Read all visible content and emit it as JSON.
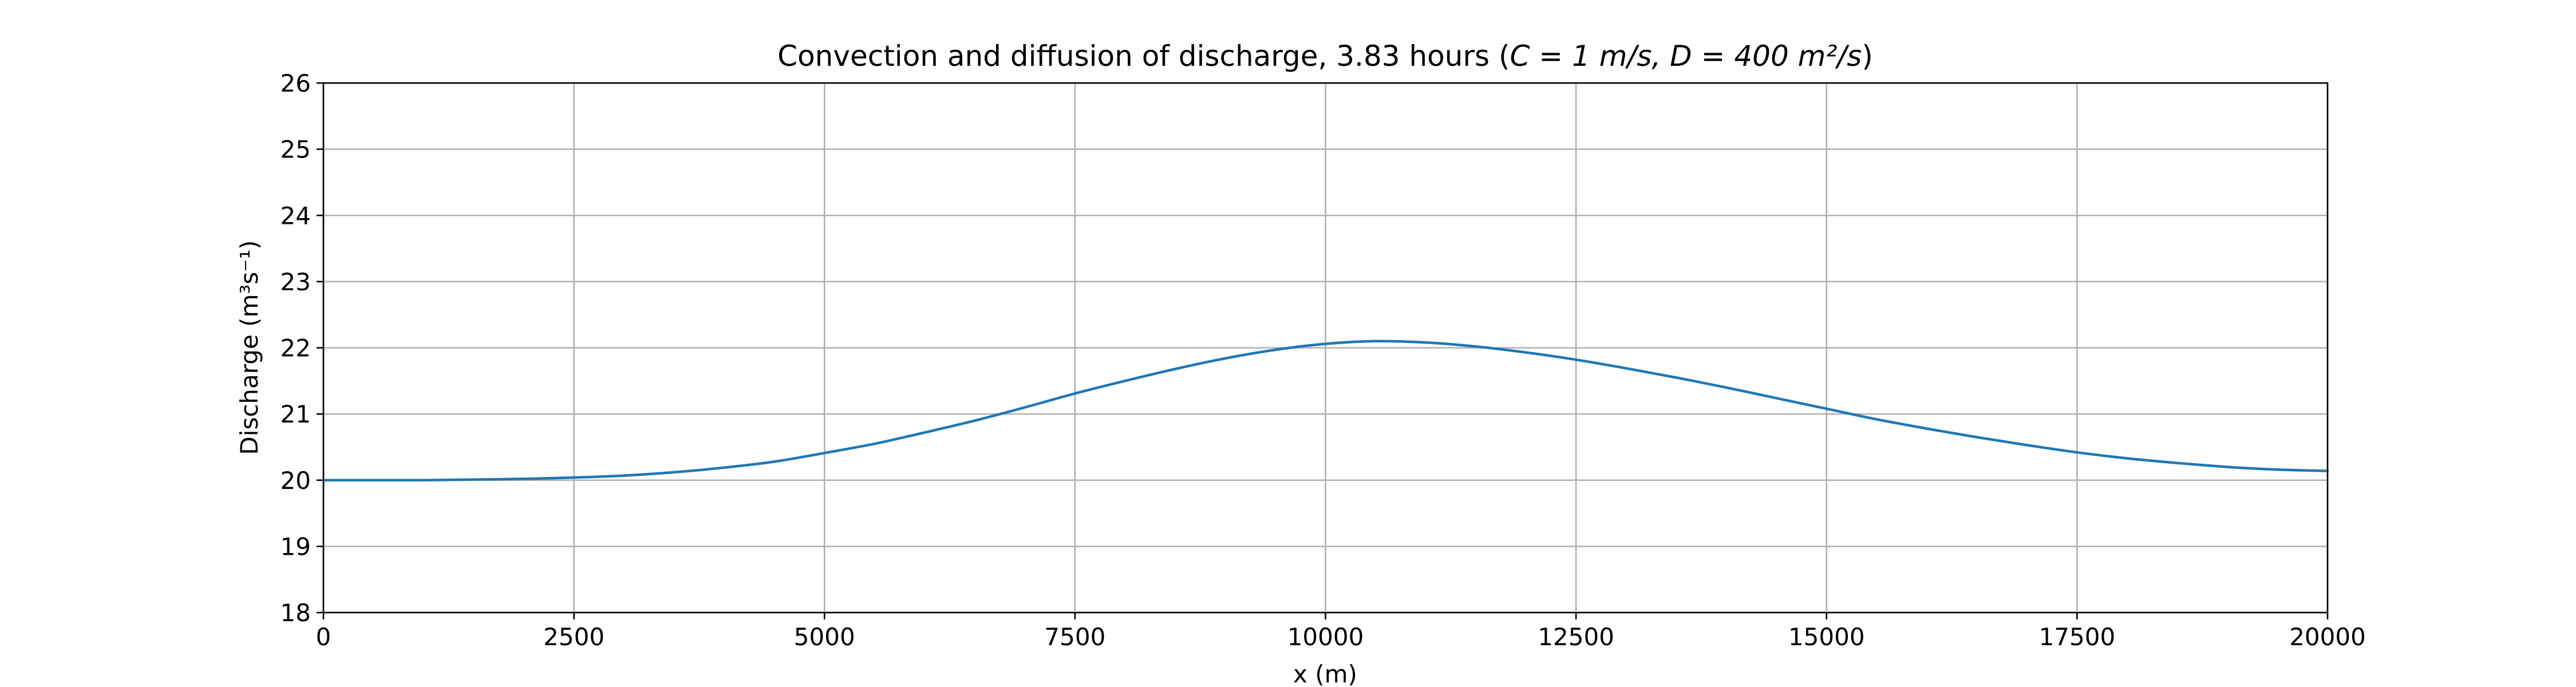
{
  "chart_data": {
    "type": "line",
    "title_main": "Convection and diffusion of discharge, 3.83 hours (",
    "title_math": "C = 1 m/s, D = 400 m²/s",
    "title_close": ")",
    "xlabel": "x (m)",
    "ylabel": "Discharge (m³s⁻¹)",
    "xlim": [
      0,
      20000
    ],
    "ylim": [
      18,
      26
    ],
    "xticks": [
      0,
      2500,
      5000,
      7500,
      10000,
      12500,
      15000,
      17500,
      20000
    ],
    "yticks": [
      18,
      19,
      20,
      21,
      22,
      23,
      24,
      25,
      26
    ],
    "grid": true,
    "series": [
      {
        "color": "#1f77b4",
        "x": [
          0,
          500,
          1000,
          1500,
          2000,
          2500,
          3000,
          3500,
          4000,
          4500,
          5000,
          5500,
          6000,
          6500,
          7000,
          7500,
          8000,
          8500,
          9000,
          9500,
          10000,
          10500,
          11000,
          11500,
          12000,
          12500,
          13000,
          13500,
          14000,
          14500,
          15000,
          15500,
          16000,
          16500,
          17000,
          17500,
          18000,
          18500,
          19000,
          19500,
          20000
        ],
        "y": [
          20.0,
          20.0,
          20.0,
          20.01,
          20.02,
          20.04,
          20.07,
          20.12,
          20.19,
          20.28,
          20.41,
          20.55,
          20.72,
          20.9,
          21.1,
          21.31,
          21.5,
          21.68,
          21.84,
          21.97,
          22.06,
          22.1,
          22.08,
          22.02,
          21.93,
          21.82,
          21.69,
          21.55,
          21.4,
          21.24,
          21.08,
          20.92,
          20.78,
          20.65,
          20.53,
          20.42,
          20.33,
          20.26,
          20.2,
          20.16,
          20.14
        ]
      }
    ]
  }
}
